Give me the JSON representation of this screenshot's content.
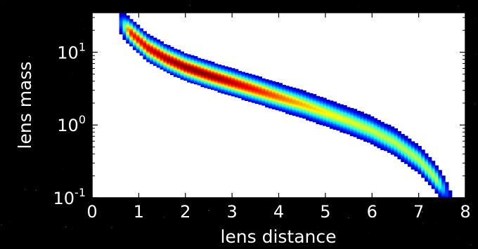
{
  "chart_data": {
    "type": "heatmap",
    "xlabel": "lens distance",
    "ylabel": "lens mass",
    "xlim": [
      0,
      8
    ],
    "ylim": [
      0.1,
      35
    ],
    "y_scale": "log",
    "grid": false,
    "x_ticks": [
      {
        "value": 0,
        "label": "0"
      },
      {
        "value": 1,
        "label": "1"
      },
      {
        "value": 2,
        "label": "2"
      },
      {
        "value": 3,
        "label": "3"
      },
      {
        "value": 4,
        "label": "4"
      },
      {
        "value": 5,
        "label": "5"
      },
      {
        "value": 6,
        "label": "6"
      },
      {
        "value": 7,
        "label": "7"
      },
      {
        "value": 8,
        "label": "8"
      }
    ],
    "y_ticks": [
      {
        "value": 10,
        "base": "10",
        "exp": "1"
      },
      {
        "value": 1,
        "base": "10",
        "exp": "0"
      },
      {
        "value": 0.1,
        "base": "10",
        "exp": "-1"
      }
    ],
    "ridge": [
      {
        "x": 0.55,
        "y": 28
      },
      {
        "x": 0.9,
        "y": 17
      },
      {
        "x": 1.2,
        "y": 11.5
      },
      {
        "x": 1.6,
        "y": 8.2
      },
      {
        "x": 2.0,
        "y": 6.3
      },
      {
        "x": 2.5,
        "y": 4.9
      },
      {
        "x": 3.0,
        "y": 3.9
      },
      {
        "x": 3.5,
        "y": 3.1
      },
      {
        "x": 4.0,
        "y": 2.45
      },
      {
        "x": 4.5,
        "y": 1.95
      },
      {
        "x": 5.0,
        "y": 1.5
      },
      {
        "x": 5.5,
        "y": 1.15
      },
      {
        "x": 6.0,
        "y": 0.85
      },
      {
        "x": 6.5,
        "y": 0.58
      },
      {
        "x": 7.0,
        "y": 0.34
      },
      {
        "x": 7.3,
        "y": 0.21
      },
      {
        "x": 7.55,
        "y": 0.13
      },
      {
        "x": 7.7,
        "y": 0.1
      }
    ],
    "band_halfwidth_dex": 0.19,
    "colormap": [
      "#00007f",
      "#0000ff",
      "#007fff",
      "#00ffff",
      "#7fff7f",
      "#ffff00",
      "#ff7f00",
      "#ff0000",
      "#7f0000"
    ],
    "frame_color": "#000000",
    "axes_background": "#ffffff",
    "figure_background": "#000000",
    "label_color": "#ffffff"
  }
}
